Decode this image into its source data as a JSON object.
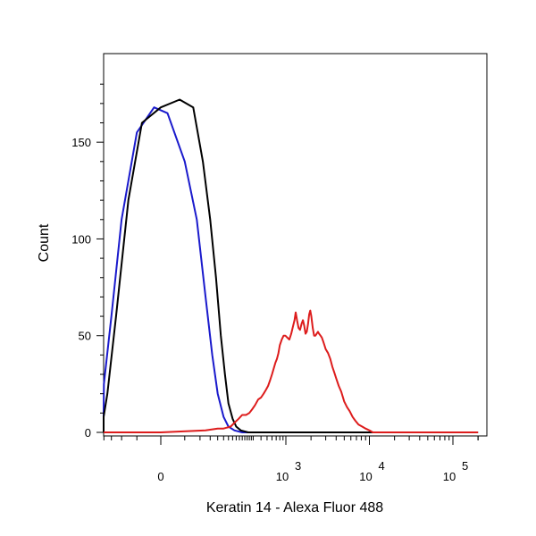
{
  "chart_data": {
    "type": "line",
    "title": "",
    "xlabel": "Keratin 14 - Alexa Fluor 488",
    "ylabel": "Count",
    "ylim": [
      0,
      190
    ],
    "xscale": "biexponential",
    "grid": false,
    "legend": "none",
    "y_ticks": [
      0,
      50,
      100,
      150
    ],
    "x_ticks": [
      {
        "value": 0,
        "base": "0",
        "exp": ""
      },
      {
        "value": 1000,
        "base": "10",
        "exp": "3"
      },
      {
        "value": 10000,
        "base": "10",
        "exp": "4"
      },
      {
        "value": 100000,
        "base": "10",
        "exp": "5"
      }
    ],
    "series": [
      {
        "color": "#1a1acc",
        "points": [
          [
            -300,
            0
          ],
          [
            -150,
            1
          ],
          [
            -120,
            4
          ],
          [
            -100,
            10
          ],
          [
            -80,
            25
          ],
          [
            -60,
            60
          ],
          [
            -40,
            110
          ],
          [
            -20,
            155
          ],
          [
            -5,
            168
          ],
          [
            5,
            165
          ],
          [
            20,
            140
          ],
          [
            35,
            110
          ],
          [
            50,
            70
          ],
          [
            65,
            40
          ],
          [
            80,
            20
          ],
          [
            100,
            8
          ],
          [
            120,
            3
          ],
          [
            150,
            1
          ],
          [
            200,
            0
          ],
          [
            500,
            0
          ],
          [
            1000,
            0
          ],
          [
            10000,
            0
          ],
          [
            100000,
            0
          ],
          [
            200000,
            0
          ]
        ]
      },
      {
        "color": "#000000",
        "points": [
          [
            -300,
            0
          ],
          [
            -150,
            1
          ],
          [
            -110,
            3
          ],
          [
            -90,
            8
          ],
          [
            -70,
            20
          ],
          [
            -50,
            60
          ],
          [
            -30,
            120
          ],
          [
            -15,
            160
          ],
          [
            0,
            168
          ],
          [
            15,
            172
          ],
          [
            30,
            168
          ],
          [
            45,
            140
          ],
          [
            60,
            110
          ],
          [
            75,
            80
          ],
          [
            90,
            50
          ],
          [
            105,
            30
          ],
          [
            120,
            15
          ],
          [
            140,
            7
          ],
          [
            160,
            3
          ],
          [
            190,
            1
          ],
          [
            250,
            0
          ],
          [
            1000,
            0
          ],
          [
            10000,
            0
          ],
          [
            100000,
            0
          ],
          [
            200000,
            0
          ]
        ]
      },
      {
        "color": "#dd1c1c",
        "points": [
          [
            -400,
            0
          ],
          [
            -100,
            0
          ],
          [
            0,
            0
          ],
          [
            50,
            1
          ],
          [
            80,
            2
          ],
          [
            100,
            2
          ],
          [
            130,
            3
          ],
          [
            150,
            5
          ],
          [
            175,
            7
          ],
          [
            200,
            9
          ],
          [
            230,
            9
          ],
          [
            260,
            10
          ],
          [
            290,
            12
          ],
          [
            320,
            14
          ],
          [
            360,
            17
          ],
          [
            400,
            18
          ],
          [
            440,
            20
          ],
          [
            480,
            22
          ],
          [
            520,
            24
          ],
          [
            560,
            27
          ],
          [
            600,
            30
          ],
          [
            640,
            33
          ],
          [
            680,
            36
          ],
          [
            720,
            38
          ],
          [
            760,
            41
          ],
          [
            800,
            45
          ],
          [
            860,
            48
          ],
          [
            920,
            50
          ],
          [
            980,
            50
          ],
          [
            1040,
            49
          ],
          [
            1100,
            48
          ],
          [
            1160,
            51
          ],
          [
            1220,
            55
          ],
          [
            1270,
            58
          ],
          [
            1310,
            62
          ],
          [
            1360,
            58
          ],
          [
            1420,
            54
          ],
          [
            1480,
            53
          ],
          [
            1540,
            56
          ],
          [
            1600,
            58
          ],
          [
            1660,
            55
          ],
          [
            1720,
            51
          ],
          [
            1780,
            52
          ],
          [
            1840,
            56
          ],
          [
            1900,
            61
          ],
          [
            1960,
            63
          ],
          [
            2020,
            60
          ],
          [
            2100,
            54
          ],
          [
            2180,
            50
          ],
          [
            2260,
            50
          ],
          [
            2340,
            51
          ],
          [
            2420,
            52
          ],
          [
            2500,
            51
          ],
          [
            2600,
            50
          ],
          [
            2700,
            49
          ],
          [
            2800,
            47
          ],
          [
            2900,
            45
          ],
          [
            3000,
            43
          ],
          [
            3200,
            41
          ],
          [
            3400,
            38
          ],
          [
            3600,
            34
          ],
          [
            3800,
            31
          ],
          [
            4000,
            28
          ],
          [
            4300,
            24
          ],
          [
            4600,
            21
          ],
          [
            5000,
            16
          ],
          [
            5400,
            13
          ],
          [
            5800,
            11
          ],
          [
            6300,
            8
          ],
          [
            6800,
            6
          ],
          [
            7400,
            4
          ],
          [
            8200,
            3
          ],
          [
            9000,
            2
          ],
          [
            10000,
            1
          ],
          [
            11000,
            0
          ],
          [
            14000,
            0
          ],
          [
            100000,
            0
          ],
          [
            200000,
            0
          ]
        ]
      }
    ]
  }
}
